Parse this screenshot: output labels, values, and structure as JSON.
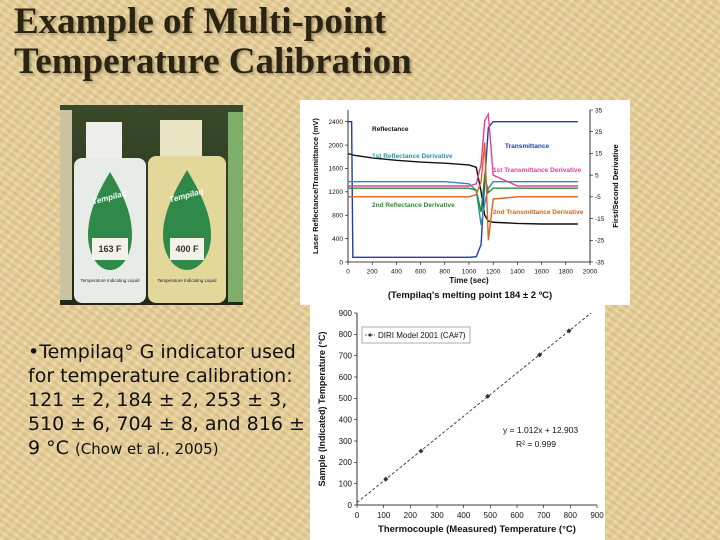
{
  "slide": {
    "title_lines": [
      "Example of Multi-point",
      "Temperature Calibration"
    ],
    "bullet": "•Tempilaq° G indicator used for temperature calibration:  121 ± 2, 184 ± 2, 253 ± 3, 510 ± 6, 704 ± 8, and 816 ± 9 °C",
    "citation": "(Chow et al., 2005)"
  },
  "photo": {
    "bottles": [
      {
        "brand": "Tempilaq",
        "rating": "163 F",
        "text": "Temperature Indicating Liquid"
      },
      {
        "brand": "Tempilaq",
        "rating": "400 F",
        "text": "Temperature Indicating Liquid"
      }
    ]
  },
  "chart_data": [
    {
      "type": "line",
      "x_label": "Time (sec)",
      "y_label": "Laser Reflectance/Transmittance (mV)",
      "y2_label": "First/Second Derivative",
      "caption": "(Tempilaq's melting point 184 ± 2 ºC)",
      "xlim": [
        0,
        2000
      ],
      "xticks": [
        0,
        200,
        400,
        600,
        800,
        1000,
        1200,
        1400,
        1600,
        1800,
        2000
      ],
      "ylim": [
        0,
        2600
      ],
      "yticks": [
        0,
        400,
        800,
        1200,
        1600,
        2000,
        2400
      ],
      "y2lim": [
        -35,
        35
      ],
      "y2ticks": [
        -35,
        -25,
        -15,
        -5,
        5,
        15,
        25,
        35
      ],
      "x": [
        0,
        30,
        40,
        200,
        400,
        600,
        800,
        1000,
        1060,
        1100,
        1130,
        1160,
        1200,
        1400,
        1600,
        1800,
        1900
      ],
      "series": [
        {
          "name": "Reflectance",
          "color": "#111111",
          "values": [
            1850,
            1840,
            1830,
            1780,
            1740,
            1710,
            1690,
            1660,
            1620,
            1200,
            800,
            700,
            680,
            660,
            650,
            650,
            650
          ]
        },
        {
          "name": "Transmittance",
          "color": "#1f3fae",
          "values": [
            2400,
            2400,
            80,
            80,
            80,
            80,
            80,
            80,
            90,
            300,
            1400,
            2300,
            2400,
            2400,
            2400,
            2400,
            2400
          ]
        },
        {
          "name": "1st Reflectance Derivative",
          "color": "#2a8fb0",
          "axis": "y2",
          "values": [
            2,
            2,
            2,
            2,
            2,
            2,
            2,
            1,
            -2,
            -18,
            -8,
            -1,
            2,
            2,
            2,
            2,
            2
          ]
        },
        {
          "name": "1st Transmittance Derivative",
          "color": "#e0409a",
          "axis": "y2",
          "values": [
            0,
            0,
            0,
            0,
            0,
            0,
            0,
            0,
            1,
            10,
            30,
            33,
            5,
            0,
            0,
            0,
            0
          ]
        },
        {
          "name": "2nd Reflectance Derivative",
          "color": "#2e8b2e",
          "axis": "y2",
          "values": [
            -1,
            -1,
            -1,
            -1,
            -1,
            -1,
            -1,
            -1,
            -2,
            -12,
            5,
            -3,
            -1,
            -1,
            -1,
            -1,
            -1
          ]
        },
        {
          "name": "2nd Transmittance Derivative",
          "color": "#e06020",
          "axis": "y2",
          "values": [
            -5,
            -5,
            -5,
            -5,
            -5,
            -5,
            -5,
            -5,
            -4,
            2,
            20,
            -25,
            -6,
            -5,
            -5,
            -5,
            -5
          ]
        }
      ]
    },
    {
      "type": "scatter",
      "x_label": "Thermocouple (Measured) Temperature (°C)",
      "y_label": "Sample (Indicated) Temperature (°C)",
      "xlim": [
        0,
        900
      ],
      "xticks": [
        0,
        100,
        200,
        300,
        400,
        500,
        600,
        700,
        800,
        900
      ],
      "ylim": [
        0,
        900
      ],
      "yticks": [
        0,
        100,
        200,
        300,
        400,
        500,
        600,
        700,
        800,
        900
      ],
      "annotations": [
        "y = 1.012x + 12.903",
        "R² = 0.999"
      ],
      "series": [
        {
          "name": "DIRI Model 2001 (CA#7)",
          "color": "#333333",
          "x": [
            108,
            240,
            490,
            685,
            795
          ],
          "values": [
            121,
            253,
            510,
            704,
            816
          ]
        }
      ]
    }
  ]
}
